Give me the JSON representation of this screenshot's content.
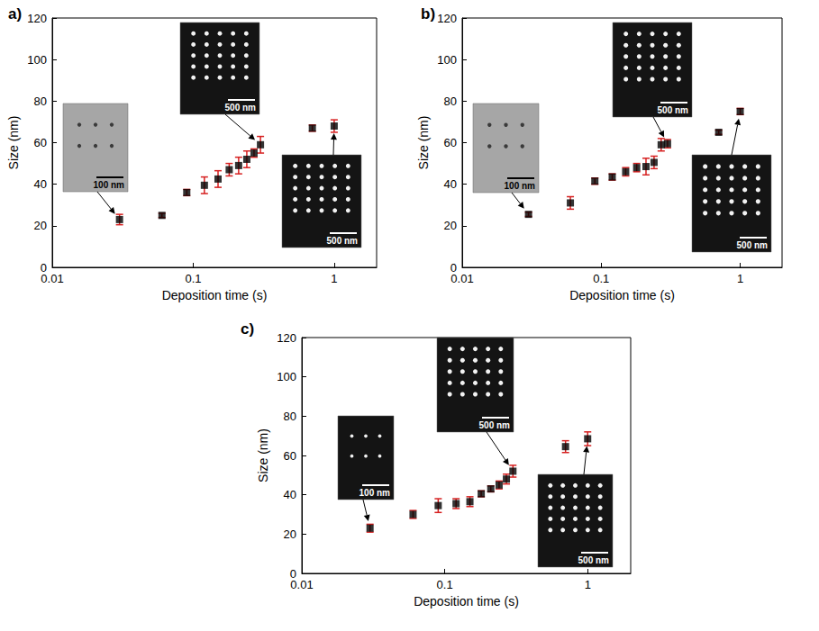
{
  "chart_data": [
    {
      "type": "scatter",
      "title": "a)",
      "xlabel": "Deposition time (s)",
      "ylabel": "Size (nm)",
      "log": "x",
      "xlim": [
        0.01,
        2
      ],
      "xticks": [
        0.01,
        0.1,
        1
      ],
      "ylim": [
        0,
        120
      ],
      "yticks": [
        0,
        20,
        40,
        60,
        80,
        100,
        120
      ],
      "grid": false,
      "x": [
        0.03,
        0.06,
        0.09,
        0.12,
        0.15,
        0.18,
        0.21,
        0.24,
        0.27,
        0.3,
        0.7,
        1.0
      ],
      "series": [
        {
          "color": "#000000",
          "marker": "square",
          "values": [
            23,
            25,
            36,
            39.5,
            42.5,
            47,
            49,
            52,
            55,
            59,
            67,
            68
          ],
          "errors": [
            2.5,
            1,
            1.5,
            4,
            4,
            3,
            4,
            4,
            2,
            4,
            1.5,
            3
          ]
        }
      ],
      "annotations": [
        {
          "text": "100 nm",
          "x": 0.03
        },
        {
          "text": "500 nm",
          "x": 0.3
        },
        {
          "text": "500 nm",
          "x": 1.0
        }
      ]
    },
    {
      "type": "scatter",
      "title": "b)",
      "xlabel": "Deposition time (s)",
      "ylabel": "Size (nm)",
      "log": "x",
      "xlim": [
        0.01,
        2
      ],
      "xticks": [
        0.01,
        0.1,
        1
      ],
      "ylim": [
        0,
        120
      ],
      "yticks": [
        0,
        20,
        40,
        60,
        80,
        100,
        120
      ],
      "grid": false,
      "x": [
        0.03,
        0.06,
        0.09,
        0.12,
        0.15,
        0.18,
        0.21,
        0.24,
        0.27,
        0.3,
        0.7,
        1.0
      ],
      "series": [
        {
          "color": "#000000",
          "marker": "square",
          "values": [
            25.5,
            31,
            41.5,
            43.5,
            46,
            48,
            48.5,
            50.5,
            59,
            59.5,
            65,
            75
          ],
          "errors": [
            1,
            3,
            1.5,
            1.5,
            2,
            2,
            4,
            3,
            3,
            2,
            1,
            1.5
          ]
        }
      ],
      "annotations": [
        {
          "text": "100 nm",
          "x": 0.03
        },
        {
          "text": "500 nm",
          "x": 0.3
        },
        {
          "text": "500 nm",
          "x": 1.0
        }
      ]
    },
    {
      "type": "scatter",
      "title": "c)",
      "xlabel": "Deposition time (s)",
      "ylabel": "Size (nm)",
      "log": "x",
      "xlim": [
        0.01,
        2
      ],
      "xticks": [
        0.01,
        0.1,
        1
      ],
      "ylim": [
        0,
        120
      ],
      "yticks": [
        0,
        20,
        40,
        60,
        80,
        100,
        120
      ],
      "grid": false,
      "x": [
        0.03,
        0.06,
        0.09,
        0.12,
        0.15,
        0.18,
        0.21,
        0.24,
        0.27,
        0.3,
        0.7,
        1.0
      ],
      "series": [
        {
          "color": "#000000",
          "marker": "square",
          "values": [
            23,
            30,
            34.5,
            35.5,
            36.5,
            40.5,
            43,
            45,
            48,
            52,
            64.5,
            68.5
          ],
          "errors": [
            2,
            2,
            3.5,
            2.5,
            2.5,
            1.5,
            1.5,
            2,
            2.5,
            3,
            3,
            3.5
          ]
        }
      ],
      "annotations": [
        {
          "text": "100 nm",
          "x": 0.03
        },
        {
          "text": "500 nm",
          "x": 0.3
        },
        {
          "text": "500 nm",
          "x": 1.0
        }
      ]
    }
  ]
}
